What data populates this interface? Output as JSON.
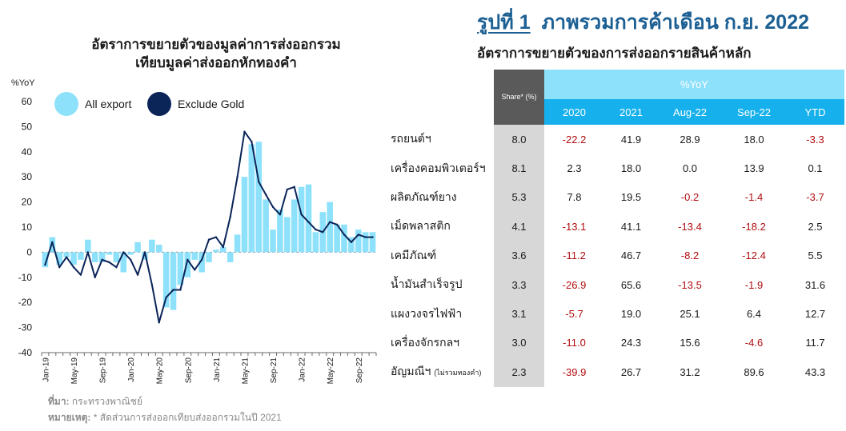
{
  "figure": {
    "number": "รูปที่ 1",
    "title": "ภาพรวมการค้าเดือน ก.ย. 2022"
  },
  "left_title": {
    "line1": "อัตราการขยายตัวของมูลค่าการส่งออกรวม",
    "line2": "เทียบมูลค่าส่งออกหักทองคำ"
  },
  "right_title": "อัตราการขยายตัวของการส่งออกรายสินค้าหลัก",
  "legend": {
    "all_export": "All export",
    "exclude_gold": "Exclude Gold"
  },
  "colors": {
    "all_export": "#8ee1fb",
    "exclude_gold": "#0b2559",
    "header_light": "#8ee1fb",
    "header_dark": "#16b1ec",
    "negative": "#b20d10"
  },
  "chart_data": {
    "type": "bar",
    "ylabel": "%YoY",
    "ylim": [
      -40,
      60
    ],
    "yticks": [
      -40,
      -30,
      -20,
      -10,
      0,
      10,
      20,
      30,
      40,
      50,
      60
    ],
    "xtick_labels": [
      "Jan-19",
      "May-19",
      "Sep-19",
      "Jan-20",
      "May-20",
      "Sep-20",
      "Jan-21",
      "May-21",
      "Sep-21",
      "Jan-22",
      "May-22",
      "Sep-22"
    ],
    "xtick_index": [
      0,
      4,
      8,
      12,
      16,
      20,
      24,
      28,
      32,
      36,
      40,
      44
    ],
    "series": [
      {
        "name": "All export",
        "type": "bar",
        "values": [
          -6,
          6,
          -5,
          -2,
          -5,
          -3,
          5,
          -4,
          -4,
          -1,
          -4,
          -8,
          -1,
          4,
          -3,
          5,
          3,
          -22,
          -23,
          -13,
          -10,
          -3,
          -8,
          -4,
          1,
          2,
          -4,
          7,
          30,
          43,
          44,
          21,
          9,
          17,
          14,
          21,
          26,
          27,
          8,
          16,
          20,
          11,
          11,
          6,
          9,
          8,
          8
        ]
      },
      {
        "name": "Exclude Gold",
        "type": "line",
        "values": [
          -5,
          4,
          -6,
          -2,
          -6,
          -9,
          0,
          -10,
          -3,
          -4,
          -6,
          0,
          -3,
          -9,
          0,
          -13,
          -28,
          -18,
          -15,
          -15,
          -3,
          -7,
          -3,
          5,
          6,
          2,
          14,
          30,
          48,
          44,
          28,
          23,
          18,
          15,
          25,
          26,
          15,
          12,
          9,
          8,
          12,
          11,
          7,
          4,
          7,
          6,
          6
        ]
      }
    ]
  },
  "table": {
    "share_header": "Share* (%)",
    "yoy_header": "%YoY",
    "columns": [
      "2020",
      "2021",
      "Aug-22",
      "Sep-22",
      "YTD"
    ],
    "rows": [
      {
        "label": "รถยนต์ฯ",
        "share": "8.0",
        "values": [
          "-22.2",
          "41.9",
          "28.9",
          "18.0",
          "-3.3"
        ]
      },
      {
        "label": "เครื่องคอมพิวเตอร์ฯ",
        "share": "8.1",
        "values": [
          "2.3",
          "18.0",
          "0.0",
          "13.9",
          "0.1"
        ]
      },
      {
        "label": "ผลิตภัณฑ์ยาง",
        "share": "5.3",
        "values": [
          "7.8",
          "19.5",
          "-0.2",
          "-1.4",
          "-3.7"
        ]
      },
      {
        "label": "เม็ดพลาสติก",
        "share": "4.1",
        "values": [
          "-13.1",
          "41.1",
          "-13.4",
          "-18.2",
          "2.5"
        ]
      },
      {
        "label": "เคมีภัณฑ์",
        "share": "3.6",
        "values": [
          "-11.2",
          "46.7",
          "-8.2",
          "-12.4",
          "5.5"
        ]
      },
      {
        "label": "น้ำมันสำเร็จรูป",
        "share": "3.3",
        "values": [
          "-26.9",
          "65.6",
          "-13.5",
          "-1.9",
          "31.6"
        ]
      },
      {
        "label": "แผงวงจรไฟฟ้า",
        "share": "3.1",
        "values": [
          "-5.7",
          "19.0",
          "25.1",
          "6.4",
          "12.7"
        ]
      },
      {
        "label": "เครื่องจักรกลฯ",
        "share": "3.0",
        "values": [
          "-11.0",
          "24.3",
          "15.6",
          "-4.6",
          "11.7"
        ]
      },
      {
        "label": "อัญมณีฯ",
        "note": "(ไม่รวมทองคำ)",
        "share": "2.3",
        "values": [
          "-39.9",
          "26.7",
          "31.2",
          "89.6",
          "43.3"
        ]
      }
    ]
  },
  "footer": {
    "source_label": "ที่มา:",
    "source_text": "กระทรวงพาณิชย์",
    "note_label": "หมายเหตุ:",
    "note_text": "* สัดส่วนการส่งออกเทียบส่งออกรวมในปี 2021"
  }
}
